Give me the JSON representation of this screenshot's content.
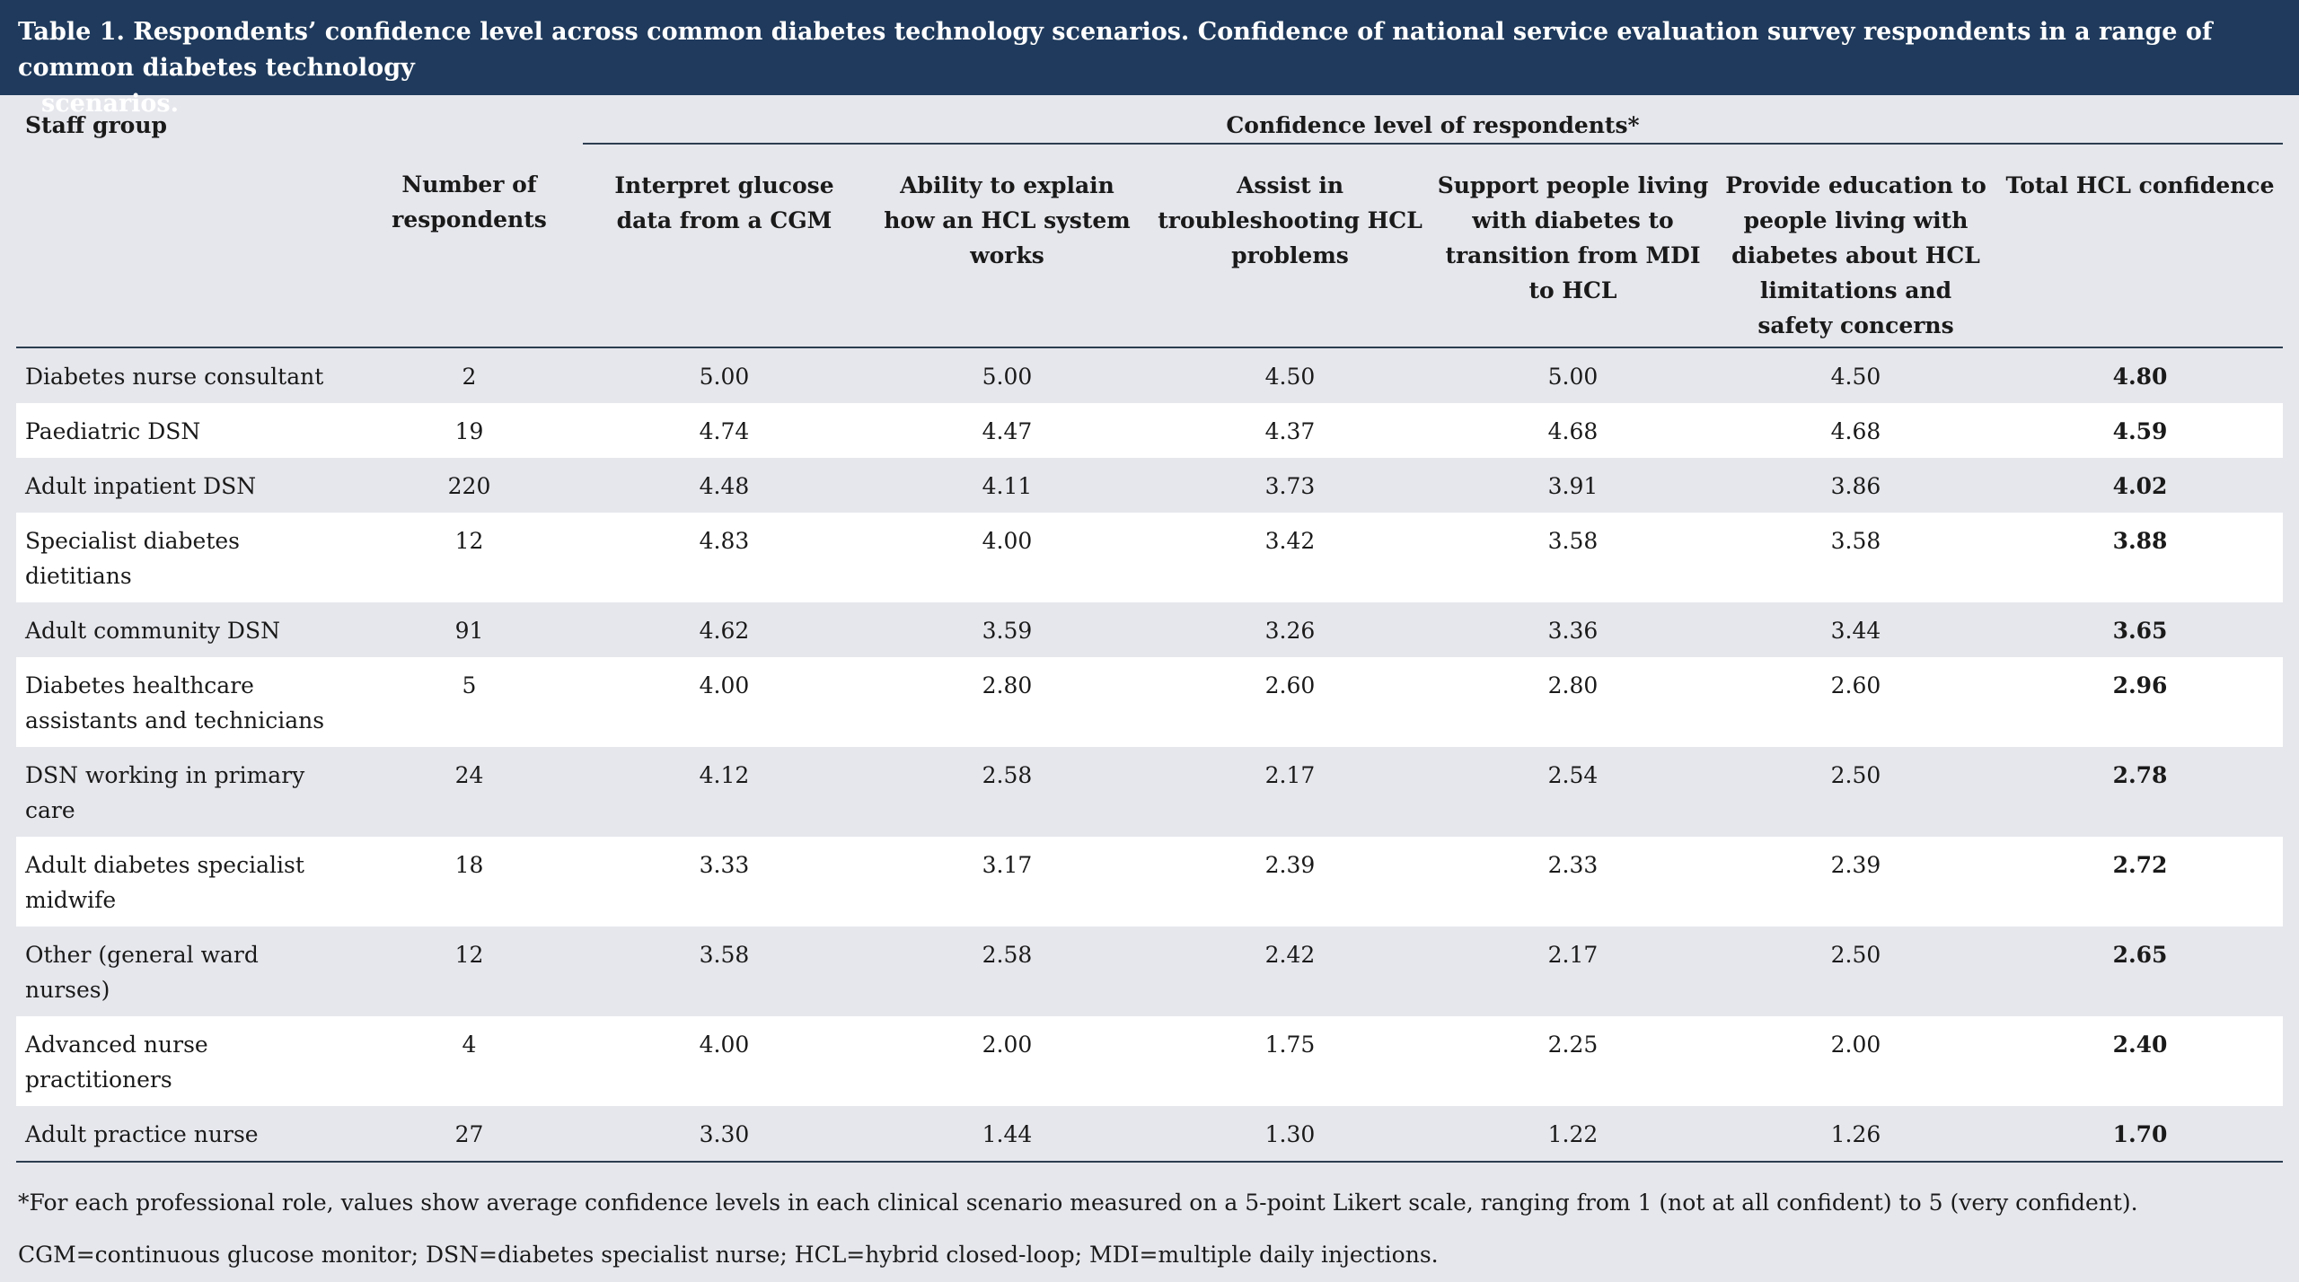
{
  "caption": {
    "line1": "Table 1. Respondents’ confidence level across common diabetes technology scenarios. Confidence of national service evaluation survey respondents in a range of common diabetes technology",
    "line2": "scenarios."
  },
  "header": {
    "staff_group": "Staff group",
    "confidence_group": "Confidence level of respondents*",
    "columns": [
      "Number of respondents",
      "Interpret glucose data from a CGM",
      "Ability to explain how an HCL system works",
      "Assist in troubleshooting HCL problems",
      "Support people living with diabetes to transition from MDI to HCL",
      "Provide education to people living with diabetes about HCL limitations and safety concerns",
      "Total HCL confidence"
    ]
  },
  "rows": [
    {
      "group": "Diabetes nurse consultant",
      "n": "2",
      "cgm": "5.00",
      "explain": "5.00",
      "troubleshoot": "4.50",
      "transition": "5.00",
      "education": "4.50",
      "total": "4.80"
    },
    {
      "group": "Paediatric DSN",
      "n": "19",
      "cgm": "4.74",
      "explain": "4.47",
      "troubleshoot": "4.37",
      "transition": "4.68",
      "education": "4.68",
      "total": "4.59"
    },
    {
      "group": "Adult inpatient DSN",
      "n": "220",
      "cgm": "4.48",
      "explain": "4.11",
      "troubleshoot": "3.73",
      "transition": "3.91",
      "education": "3.86",
      "total": "4.02"
    },
    {
      "group": "Specialist diabetes dietitians",
      "n": "12",
      "cgm": "4.83",
      "explain": "4.00",
      "troubleshoot": "3.42",
      "transition": "3.58",
      "education": "3.58",
      "total": "3.88"
    },
    {
      "group": "Adult community DSN",
      "n": "91",
      "cgm": "4.62",
      "explain": "3.59",
      "troubleshoot": "3.26",
      "transition": "3.36",
      "education": "3.44",
      "total": "3.65"
    },
    {
      "group": "Diabetes healthcare assistants and technicians",
      "n": "5",
      "cgm": "4.00",
      "explain": "2.80",
      "troubleshoot": "2.60",
      "transition": "2.80",
      "education": "2.60",
      "total": "2.96"
    },
    {
      "group": "DSN working in primary care",
      "n": "24",
      "cgm": "4.12",
      "explain": "2.58",
      "troubleshoot": "2.17",
      "transition": "2.54",
      "education": "2.50",
      "total": "2.78"
    },
    {
      "group": "Adult diabetes specialist midwife",
      "n": "18",
      "cgm": "3.33",
      "explain": "3.17",
      "troubleshoot": "2.39",
      "transition": "2.33",
      "education": "2.39",
      "total": "2.72"
    },
    {
      "group": "Other (general ward nurses)",
      "n": "12",
      "cgm": "3.58",
      "explain": "2.58",
      "troubleshoot": "2.42",
      "transition": "2.17",
      "education": "2.50",
      "total": "2.65"
    },
    {
      "group": "Advanced nurse practitioners",
      "n": "4",
      "cgm": "4.00",
      "explain": "2.00",
      "troubleshoot": "1.75",
      "transition": "2.25",
      "education": "2.00",
      "total": "2.40"
    },
    {
      "group": "Adult practice nurse",
      "n": "27",
      "cgm": "3.30",
      "explain": "1.44",
      "troubleshoot": "1.30",
      "transition": "1.22",
      "education": "1.26",
      "total": "1.70"
    }
  ],
  "footnotes": {
    "note1": "*For each professional role, values show average confidence levels in each clinical scenario measured on a 5-point Likert scale, ranging from 1 (not at all confident) to 5 (very confident).",
    "note2": "CGM=continuous glucose monitor; DSN=diabetes specialist nurse; HCL=hybrid closed-loop; MDI=multiple daily injections."
  }
}
